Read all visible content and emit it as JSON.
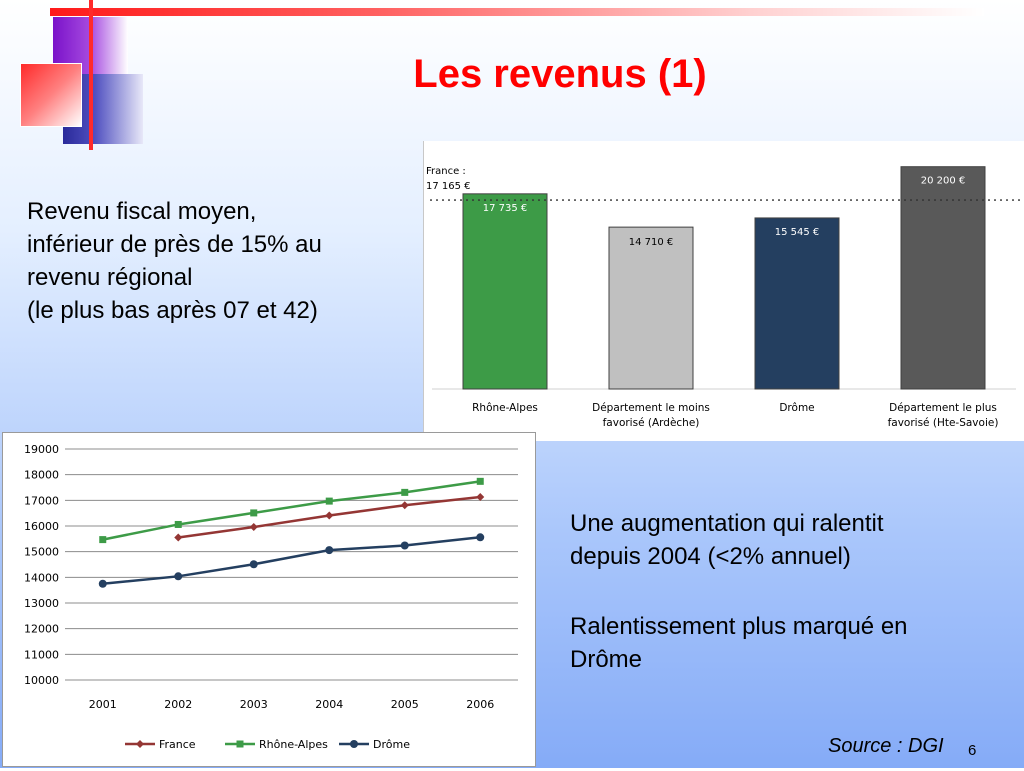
{
  "slide": {
    "title": "Les revenus (1)",
    "left_text": [
      "Revenu fiscal moyen,",
      "inférieur de près de 15% au",
      "revenu régional",
      "(le plus bas après 07 et 42)"
    ],
    "right_text": [
      "Une augmentation qui ralentit",
      "depuis 2004 (<2% annuel)",
      "",
      "Ralentissement plus marqué en",
      "Drôme"
    ],
    "source": "Source : DGI",
    "page_number": "6"
  },
  "colors": {
    "title": "#ff0000",
    "france": "#943634",
    "rhone_alpes": "#3d9b47",
    "drome": "#243f60"
  },
  "chart_data": [
    {
      "type": "bar",
      "categories": [
        "Rhône-Alpes",
        "Département le moins favorisé (Ardèche)",
        "Drôme",
        "Département le plus favorisé (Hte-Savoie)"
      ],
      "category_lines": [
        [
          "Rhône-Alpes"
        ],
        [
          "Département le moins",
          "favorisé (Ardèche)"
        ],
        [
          "Drôme"
        ],
        [
          "Département le plus",
          "favorisé (Hte-Savoie)"
        ]
      ],
      "values": [
        17735,
        14710,
        15545,
        20200
      ],
      "value_labels": [
        "17 735 €",
        "14 710 €",
        "15 545 €",
        "20 200 €"
      ],
      "colors": [
        "#3d9b47",
        "#c0c0c0",
        "#243f60",
        "#595959"
      ],
      "reference_line": {
        "value": 17165,
        "label": [
          "France :",
          "17 165 €"
        ],
        "style": "dotted"
      },
      "ylim": [
        0,
        20900
      ]
    },
    {
      "type": "line",
      "x": [
        2001,
        2002,
        2003,
        2004,
        2005,
        2006
      ],
      "series": [
        {
          "name": "France",
          "values": [
            null,
            15550,
            15960,
            16410,
            16810,
            17130
          ],
          "color": "#943634",
          "marker": "diamond"
        },
        {
          "name": "Rhône-Alpes",
          "values": [
            15470,
            16060,
            16510,
            16970,
            17310,
            17740
          ],
          "color": "#3d9b47",
          "marker": "square"
        },
        {
          "name": "Drôme",
          "values": [
            13750,
            14040,
            14510,
            15060,
            15240,
            15560
          ],
          "color": "#243f60",
          "marker": "circle"
        }
      ],
      "ylim": [
        10000,
        19000
      ],
      "yticks": [
        10000,
        11000,
        12000,
        13000,
        14000,
        15000,
        16000,
        17000,
        18000,
        19000
      ],
      "grid": true,
      "legend": "bottom"
    }
  ]
}
